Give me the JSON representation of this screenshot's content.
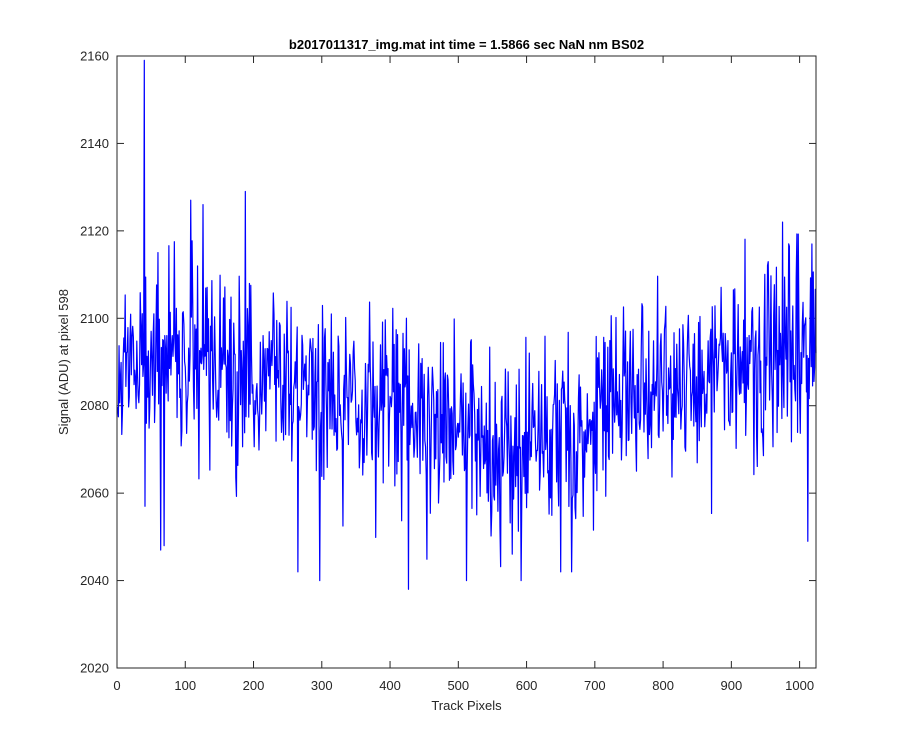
{
  "chart_data": {
    "type": "line",
    "title": "b2017011317_img.mat int time = 1.5866 sec  NaN nm BS02",
    "xlabel": "Track Pixels",
    "ylabel": "Signal (ADU) at pixel 598",
    "xlim": [
      0,
      1024
    ],
    "ylim": [
      2020,
      2160
    ],
    "xticks": [
      0,
      100,
      200,
      300,
      400,
      500,
      600,
      700,
      800,
      900,
      1000
    ],
    "yticks": [
      2020,
      2040,
      2060,
      2080,
      2100,
      2120,
      2140,
      2160
    ],
    "xtick_labels": [
      "0",
      "100",
      "200",
      "300",
      "400",
      "500",
      "600",
      "700",
      "800",
      "900",
      "1000"
    ],
    "ytick_labels": [
      "2020",
      "2040",
      "2060",
      "2080",
      "2100",
      "2120",
      "2140",
      "2160"
    ],
    "grid": false,
    "legend": "none",
    "series": [
      {
        "color": "#0000ff",
        "x_start": 1,
        "x_step": 1,
        "n_points": 1024,
        "trend": {
          "x": [
            0,
            50,
            150,
            300,
            450,
            550,
            650,
            750,
            850,
            950,
            1024
          ],
          "y": [
            2088,
            2090,
            2088,
            2084,
            2076,
            2072,
            2074,
            2082,
            2086,
            2090,
            2092
          ]
        },
        "noise_amplitude": 11,
        "notable_points": [
          {
            "x": 40,
            "y": 2159
          },
          {
            "x": 41,
            "y": 2057
          },
          {
            "x": 64,
            "y": 2047
          },
          {
            "x": 69,
            "y": 2048
          },
          {
            "x": 108,
            "y": 2127
          },
          {
            "x": 126,
            "y": 2126
          },
          {
            "x": 188,
            "y": 2129
          },
          {
            "x": 265,
            "y": 2042
          },
          {
            "x": 297,
            "y": 2040
          },
          {
            "x": 427,
            "y": 2038
          },
          {
            "x": 512,
            "y": 2040
          },
          {
            "x": 592,
            "y": 2040
          },
          {
            "x": 975,
            "y": 2122
          },
          {
            "x": 1012,
            "y": 2049
          },
          {
            "x": 1018,
            "y": 2117
          }
        ]
      }
    ]
  }
}
